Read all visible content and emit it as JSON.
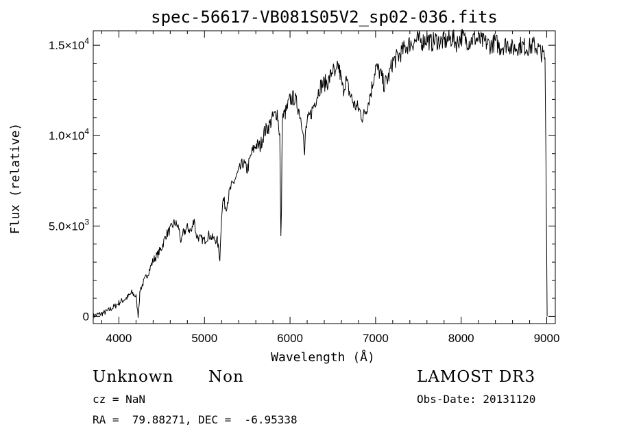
{
  "chart_data": {
    "type": "line",
    "title": "spec-56617-VB081S05V2_sp02-036.fits",
    "xlabel": "Wavelength (Å)",
    "ylabel": "Flux (relative)",
    "xlim": [
      3700,
      9100
    ],
    "ylim": [
      -400,
      15800
    ],
    "x_ticks": [
      4000,
      5000,
      6000,
      7000,
      8000,
      9000
    ],
    "x_tick_labels": [
      "4000",
      "5000",
      "6000",
      "7000",
      "8000",
      "9000"
    ],
    "y_ticks": [
      0,
      5000,
      10000,
      15000
    ],
    "y_tick_labels": [
      {
        "mantissa": "0",
        "exp": ""
      },
      {
        "mantissa": "5.0×10",
        "exp": "3"
      },
      {
        "mantissa": "1.0×10",
        "exp": "4"
      },
      {
        "mantissa": "1.5×10",
        "exp": "4"
      }
    ],
    "grid": false,
    "series": [
      {
        "color": "#000000",
        "x": [
          3700,
          3750,
          3800,
          3850,
          3900,
          3950,
          4000,
          4050,
          4100,
          4150,
          4200,
          4225,
          4235,
          4250,
          4300,
          4350,
          4400,
          4450,
          4500,
          4550,
          4600,
          4650,
          4700,
          4730,
          4750,
          4800,
          4850,
          4880,
          4900,
          4950,
          5000,
          5050,
          5100,
          5150,
          5180,
          5200,
          5220,
          5250,
          5300,
          5350,
          5400,
          5450,
          5500,
          5550,
          5600,
          5650,
          5700,
          5750,
          5800,
          5850,
          5880,
          5893,
          5900,
          5910,
          5950,
          6000,
          6050,
          6100,
          6150,
          6170,
          6180,
          6200,
          6250,
          6300,
          6350,
          6400,
          6450,
          6500,
          6530,
          6563,
          6590,
          6620,
          6650,
          6700,
          6750,
          6800,
          6850,
          6870,
          6900,
          6950,
          7000,
          7050,
          7100,
          7150,
          7200,
          7250,
          7300,
          7350,
          7400,
          7450,
          7500,
          7550,
          7600,
          7650,
          7700,
          7750,
          7800,
          7850,
          7900,
          7950,
          8000,
          8050,
          8100,
          8150,
          8200,
          8250,
          8300,
          8350,
          8400,
          8450,
          8500,
          8550,
          8600,
          8650,
          8700,
          8750,
          8800,
          8850,
          8900,
          8950,
          8980,
          8990,
          9000,
          9005
        ],
        "y": [
          0,
          100,
          150,
          250,
          400,
          550,
          750,
          900,
          1050,
          1300,
          1100,
          50,
          700,
          1500,
          2000,
          2500,
          3100,
          3400,
          3800,
          4500,
          4800,
          5200,
          4900,
          4000,
          4600,
          4900,
          4700,
          5500,
          4500,
          4300,
          4200,
          4500,
          4300,
          4200,
          3200,
          5700,
          6500,
          6000,
          7000,
          7500,
          8000,
          8500,
          8100,
          9000,
          9500,
          9400,
          10200,
          10500,
          11000,
          11300,
          10000,
          4300,
          6000,
          11000,
          11300,
          12000,
          12100,
          11500,
          10500,
          8700,
          10200,
          10700,
          11300,
          12000,
          12700,
          12900,
          13000,
          13700,
          13200,
          13900,
          13300,
          12500,
          13100,
          12300,
          11700,
          11500,
          11000,
          11200,
          11600,
          12500,
          13800,
          13500,
          12800,
          13200,
          14100,
          14300,
          14600,
          14900,
          15100,
          15200,
          15300,
          15200,
          15400,
          15100,
          15300,
          15200,
          15200,
          15300,
          15400,
          15100,
          15500,
          15300,
          15200,
          15400,
          15300,
          15200,
          15100,
          15000,
          15200,
          14900,
          15000,
          15100,
          14800,
          14900,
          15000,
          14900,
          14900,
          15000,
          14800,
          14500,
          14300,
          9000,
          3000,
          0
        ]
      }
    ]
  },
  "info": {
    "obj_class": "Unknown",
    "obj_subclass": "Non",
    "survey": "LAMOST DR3",
    "cz": "cz = NaN",
    "obs_date": "Obs-Date: 20131120",
    "radec": "RA =  79.88271, DEC =  -6.95338"
  }
}
